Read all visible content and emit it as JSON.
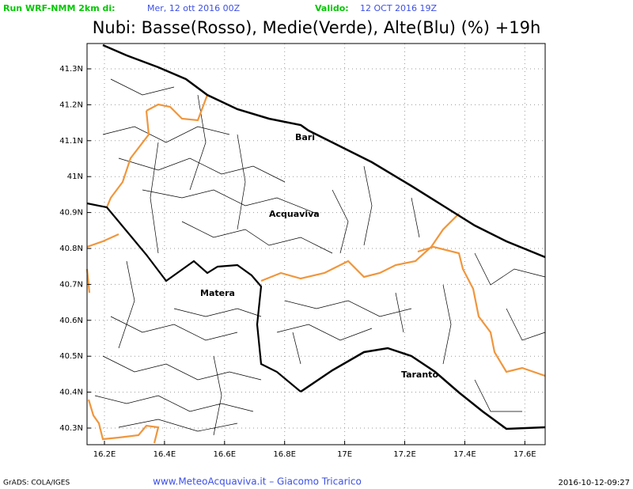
{
  "header": {
    "run_label": "Run WRF-NMM 2km di:",
    "run_date": "Mer, 12 ott 2016 00Z",
    "valid_label": "Valido:",
    "valid_date": "12 OCT 2016 19Z",
    "title": "Nubi: Basse(Rosso), Medie(Verde), Alte(Blu) (%) +19h"
  },
  "map": {
    "lat_ticks": [
      "41.3N",
      "41.2N",
      "41.1N",
      "41N",
      "40.9N",
      "40.8N",
      "40.7N",
      "40.6N",
      "40.5N",
      "40.4N",
      "40.3N"
    ],
    "lon_ticks": [
      "16.2E",
      "16.4E",
      "16.6E",
      "16.8E",
      "17E",
      "17.2E",
      "17.4E",
      "17.6E"
    ],
    "cities": [
      "Bari",
      "Acquaviva",
      "Matera",
      "Taranto"
    ]
  },
  "footer": {
    "left": "GrADS: COLA/IGES",
    "center": "www.MeteoAcquaviva.it – Giacomo Tricarico",
    "right": "2016-10-12-09:27"
  }
}
